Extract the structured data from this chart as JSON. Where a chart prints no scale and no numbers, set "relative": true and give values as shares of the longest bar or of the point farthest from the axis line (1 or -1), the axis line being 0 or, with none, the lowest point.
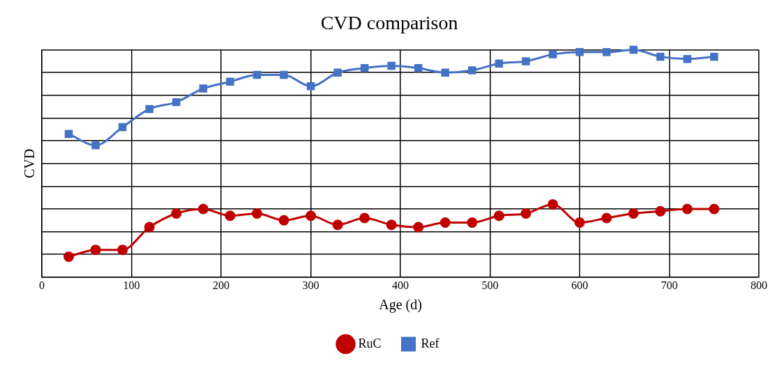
{
  "chart_data": {
    "type": "line",
    "title": "CVD comparison",
    "xlabel": "Age (d)",
    "ylabel": "CVD",
    "relative": true,
    "xlim": [
      0,
      800
    ],
    "xticks": [
      0,
      100,
      200,
      300,
      400,
      500,
      600,
      700,
      800
    ],
    "grid": true,
    "legend": "bottom",
    "x": [
      30,
      60,
      90,
      120,
      150,
      180,
      210,
      240,
      270,
      300,
      330,
      360,
      390,
      420,
      450,
      480,
      510,
      540,
      570,
      600,
      630,
      660,
      690,
      720,
      750
    ],
    "series": [
      {
        "name": "RuC",
        "color": "#c00000",
        "marker": "circle",
        "values": [
          0.09,
          0.12,
          0.12,
          0.22,
          0.28,
          0.3,
          0.27,
          0.28,
          0.25,
          0.27,
          0.23,
          0.26,
          0.23,
          0.22,
          0.24,
          0.24,
          0.27,
          0.28,
          0.32,
          0.24,
          0.26,
          0.28,
          0.29,
          0.3,
          0.3
        ]
      },
      {
        "name": "Ref",
        "color": "#4472c4",
        "marker": "square",
        "values": [
          0.63,
          0.58,
          0.66,
          0.74,
          0.77,
          0.83,
          0.86,
          0.89,
          0.89,
          0.84,
          0.9,
          0.92,
          0.93,
          0.92,
          0.9,
          0.91,
          0.94,
          0.95,
          0.98,
          0.99,
          0.99,
          1.0,
          0.97,
          0.96,
          0.97
        ]
      }
    ]
  }
}
